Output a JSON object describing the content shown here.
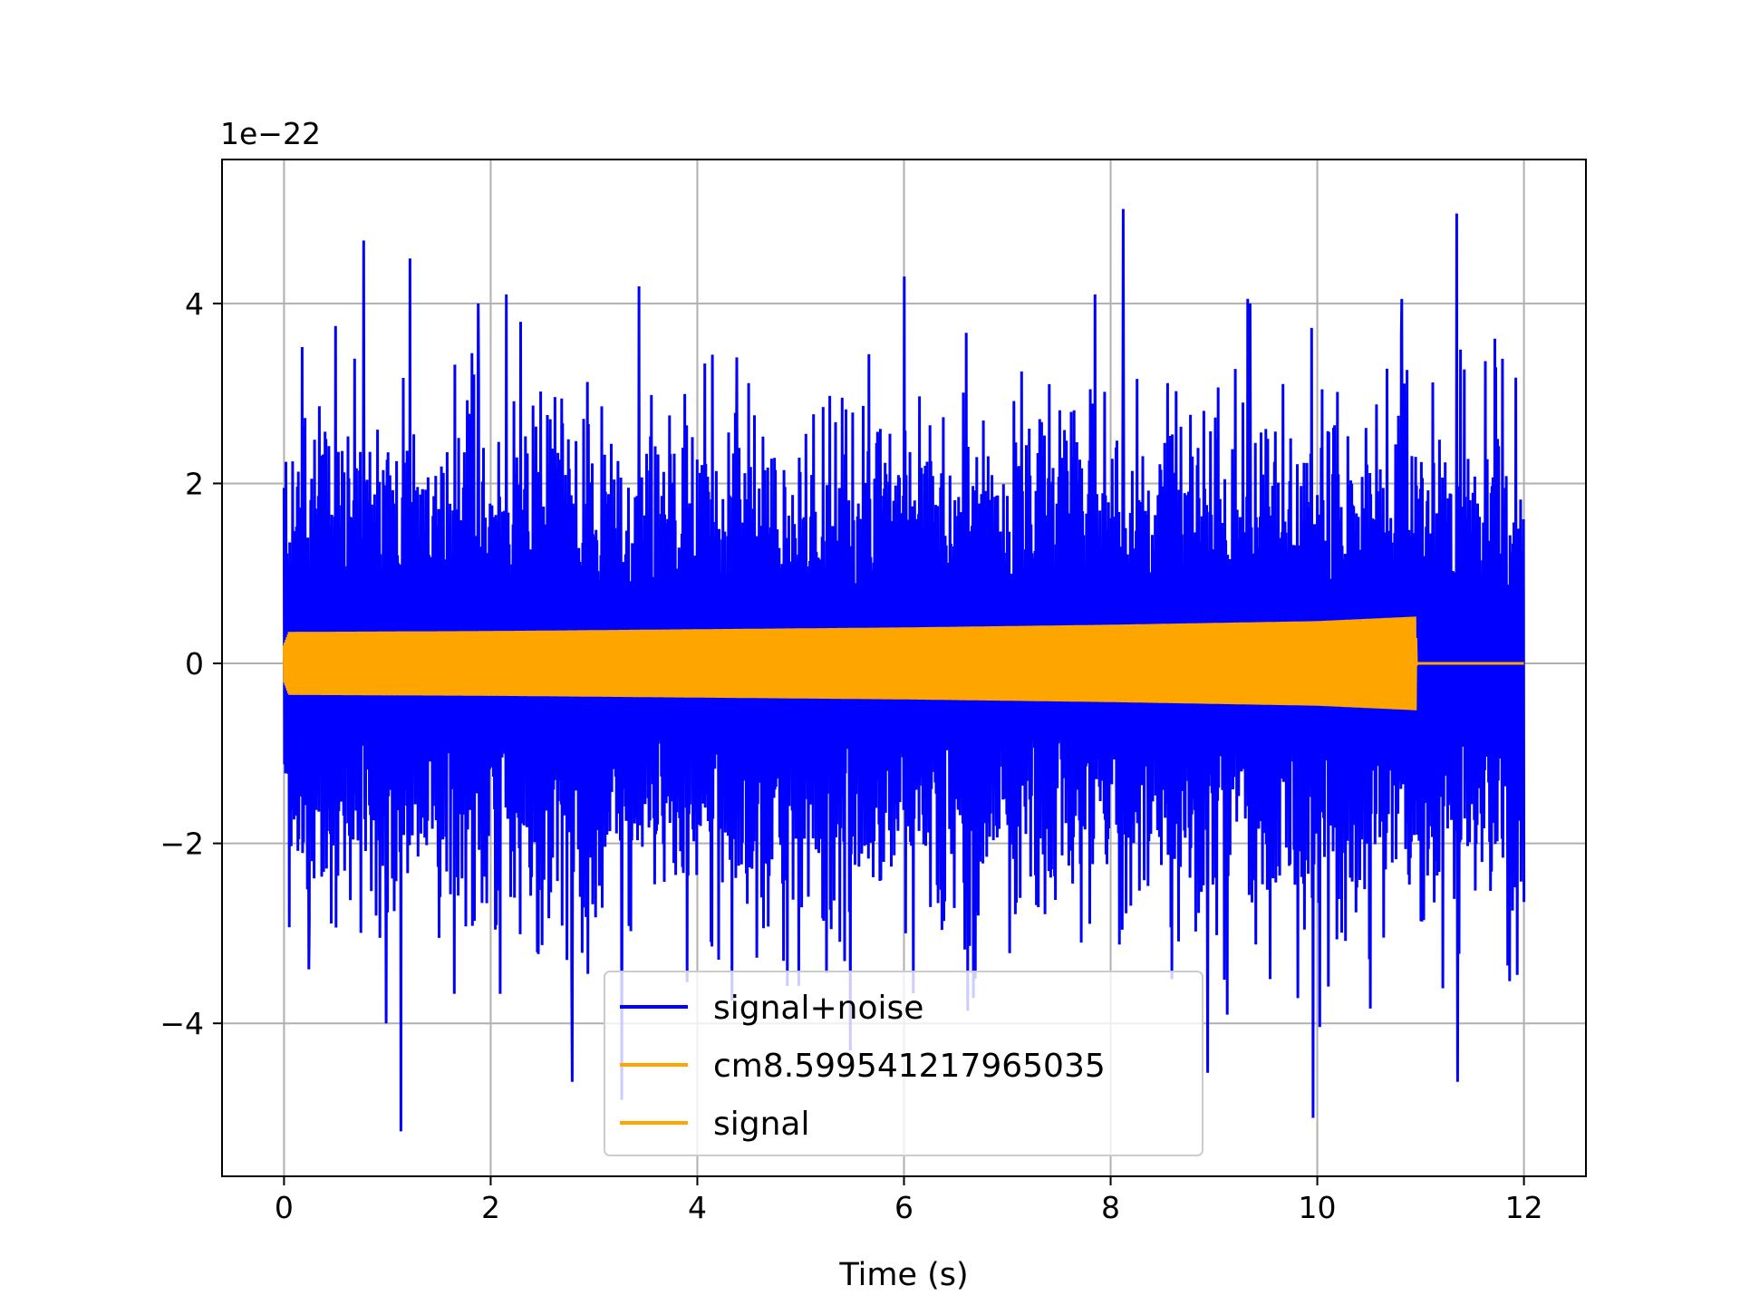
{
  "chart_data": {
    "type": "line",
    "title": "",
    "xlabel": "Time (s)",
    "ylabel": "",
    "y_scale_label": "1e−22",
    "y_multiplier": 1e-22,
    "xlim": [
      -0.6,
      12.6
    ],
    "ylim": [
      -5.7,
      5.6
    ],
    "x_ticks": [
      0,
      2,
      4,
      6,
      8,
      10,
      12
    ],
    "x_tick_labels": [
      "0",
      "2",
      "4",
      "6",
      "8",
      "10",
      "12"
    ],
    "y_ticks": [
      -4,
      -2,
      0,
      2,
      4
    ],
    "y_tick_labels": [
      "−4",
      "−2",
      "0",
      "2",
      "4"
    ],
    "grid": true,
    "legend_position": "bottom-center",
    "series": [
      {
        "name": "signal+noise",
        "color": "#0000ff",
        "x_range": [
          0,
          12
        ],
        "description_values": {
          "typical_envelope_min": -2.6,
          "typical_envelope_max": 2.6,
          "peak_max": 5.05,
          "peak_min": -5.2
        },
        "x": [
          0,
          0.24,
          0.5,
          0.77,
          0.99,
          1.13,
          1.22,
          1.88,
          2.15,
          2.79,
          3.27,
          4.38,
          5.48,
          6.0,
          6.69,
          7.85,
          8.12,
          8.94,
          9.35,
          9.96,
          10.82,
          11.35,
          11.36,
          12.0
        ],
        "y": [
          1.95,
          -3.4,
          3.75,
          4.7,
          -4.0,
          -5.2,
          4.5,
          4.0,
          4.1,
          -4.65,
          -4.85,
          3.4,
          -4.3,
          4.3,
          -3.5,
          4.1,
          5.05,
          -4.55,
          4.0,
          -5.05,
          4.05,
          5.0,
          -4.65,
          -2.65
        ]
      },
      {
        "name": "cm8.599541217965035",
        "color": "#ffa500",
        "x": [],
        "y": []
      },
      {
        "name": "signal",
        "color": "#ffa500",
        "x": [
          0,
          0.05,
          2,
          4,
          6,
          8,
          10,
          10.95,
          10.96,
          12.0
        ],
        "amplitude": [
          0.2,
          0.35,
          0.36,
          0.38,
          0.4,
          0.43,
          0.47,
          0.52,
          0.0,
          0.0
        ]
      }
    ]
  }
}
